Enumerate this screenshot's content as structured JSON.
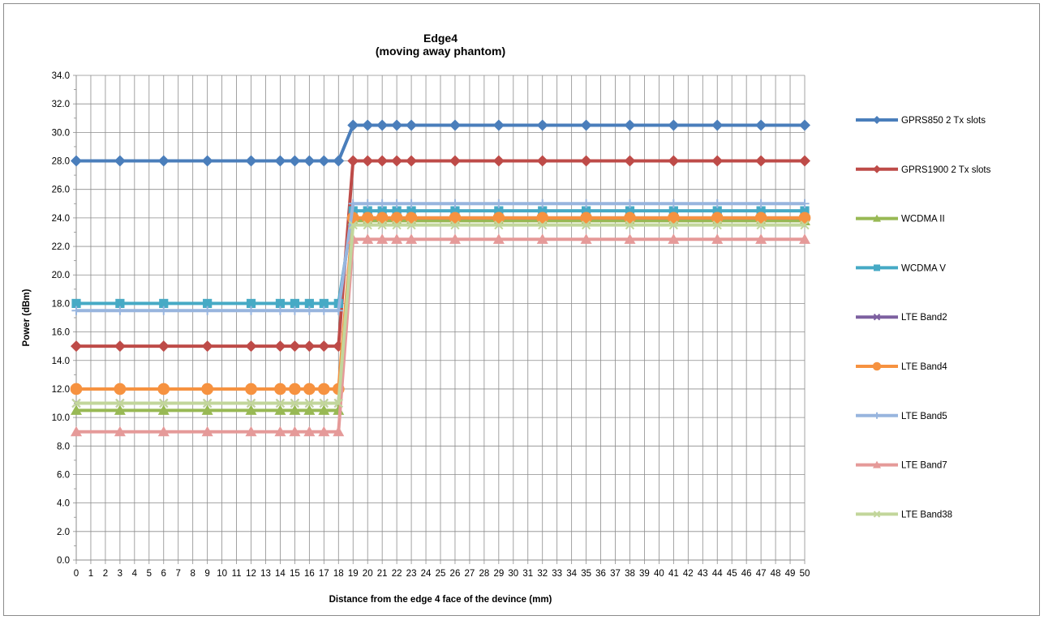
{
  "chart_data": {
    "type": "line",
    "title_lines": [
      "Edge4",
      "(moving away phantom)"
    ],
    "xlabel": "Distance from the edge 4 face of the devince (mm)",
    "ylabel": "Power (dBm)",
    "ylim": [
      0,
      34
    ],
    "yticks": [
      0,
      2,
      4,
      6,
      8,
      10,
      12,
      14,
      16,
      18,
      20,
      22,
      24,
      26,
      28,
      30,
      32,
      34
    ],
    "ytick_labels": [
      "0.0",
      "2.0",
      "4.0",
      "6.0",
      "8.0",
      "10.0",
      "12.0",
      "14.0",
      "16.0",
      "18.0",
      "20.0",
      "22.0",
      "24.0",
      "26.0",
      "28.0",
      "30.0",
      "32.0",
      "34.0"
    ],
    "xlim": [
      0,
      50
    ],
    "xtick_labels": [
      "0",
      "1",
      "2",
      "3",
      "4",
      "5",
      "6",
      "7",
      "8",
      "9",
      "10",
      "11",
      "12",
      "13",
      "14",
      "15",
      "16",
      "17",
      "18",
      "19",
      "20",
      "21",
      "22",
      "23",
      "24",
      "25",
      "26",
      "27",
      "28",
      "29",
      "30",
      "31",
      "32",
      "33",
      "34",
      "35",
      "36",
      "37",
      "38",
      "39",
      "40",
      "41",
      "42",
      "43",
      "44",
      "45",
      "46",
      "47",
      "48",
      "49",
      "50"
    ],
    "grid": true,
    "legend_position": "right",
    "x": [
      0,
      3,
      6,
      9,
      12,
      14,
      15,
      16,
      17,
      18,
      19,
      20,
      21,
      22,
      23,
      26,
      29,
      32,
      35,
      38,
      41,
      44,
      47,
      50
    ],
    "series": [
      {
        "name": "GPRS850 2 Tx slots",
        "color": "#4a7ebb",
        "marker": "diamond",
        "values": [
          28,
          28,
          28,
          28,
          28,
          28,
          28,
          28,
          28,
          28,
          30.5,
          30.5,
          30.5,
          30.5,
          30.5,
          30.5,
          30.5,
          30.5,
          30.5,
          30.5,
          30.5,
          30.5,
          30.5,
          30.5
        ]
      },
      {
        "name": "GPRS1900 2 Tx slots",
        "color": "#be4b48",
        "marker": "diamond",
        "values": [
          15,
          15,
          15,
          15,
          15,
          15,
          15,
          15,
          15,
          15,
          28,
          28,
          28,
          28,
          28,
          28,
          28,
          28,
          28,
          28,
          28,
          28,
          28,
          28
        ]
      },
      {
        "name": "WCDMA II",
        "color": "#98b954",
        "marker": "triangle",
        "values": [
          10.5,
          10.5,
          10.5,
          10.5,
          10.5,
          10.5,
          10.5,
          10.5,
          10.5,
          10.5,
          23.8,
          23.8,
          23.8,
          23.8,
          23.8,
          23.8,
          23.8,
          23.8,
          23.8,
          23.8,
          23.8,
          23.8,
          23.8,
          23.8
        ]
      },
      {
        "name": "WCDMA V",
        "color": "#46aac5",
        "marker": "square",
        "values": [
          18,
          18,
          18,
          18,
          18,
          18,
          18,
          18,
          18,
          18,
          24.5,
          24.5,
          24.5,
          24.5,
          24.5,
          24.5,
          24.5,
          24.5,
          24.5,
          24.5,
          24.5,
          24.5,
          24.5,
          24.5
        ]
      },
      {
        "name": "LTE Band2",
        "color": "#7d60a0",
        "marker": "x",
        "values": [
          11,
          11,
          11,
          11,
          11,
          11,
          11,
          11,
          11,
          11,
          24,
          24,
          24,
          24,
          24,
          24,
          24,
          24,
          24,
          24,
          24,
          24,
          24,
          24
        ]
      },
      {
        "name": "LTE Band4",
        "color": "#f69240",
        "marker": "circle",
        "values": [
          12,
          12,
          12,
          12,
          12,
          12,
          12,
          12,
          12,
          12,
          24,
          24,
          24,
          24,
          24,
          24,
          24,
          24,
          24,
          24,
          24,
          24,
          24,
          24
        ]
      },
      {
        "name": "LTE Band5",
        "color": "#98b5de",
        "marker": "plus",
        "values": [
          17.5,
          17.5,
          17.5,
          17.5,
          17.5,
          17.5,
          17.5,
          17.5,
          17.5,
          17.5,
          25,
          25,
          25,
          25,
          25,
          25,
          25,
          25,
          25,
          25,
          25,
          25,
          25,
          25
        ]
      },
      {
        "name": "LTE Band7",
        "color": "#e59a99",
        "marker": "triangle",
        "values": [
          9,
          9,
          9,
          9,
          9,
          9,
          9,
          9,
          9,
          9,
          22.5,
          22.5,
          22.5,
          22.5,
          22.5,
          22.5,
          22.5,
          22.5,
          22.5,
          22.5,
          22.5,
          22.5,
          22.5,
          22.5
        ]
      },
      {
        "name": "LTE Band38",
        "color": "#c2d69b",
        "marker": "x",
        "values": [
          11,
          11,
          11,
          11,
          11,
          11,
          11,
          11,
          11,
          11,
          23.5,
          23.5,
          23.5,
          23.5,
          23.5,
          23.5,
          23.5,
          23.5,
          23.5,
          23.5,
          23.5,
          23.5,
          23.5,
          23.5
        ]
      }
    ]
  }
}
